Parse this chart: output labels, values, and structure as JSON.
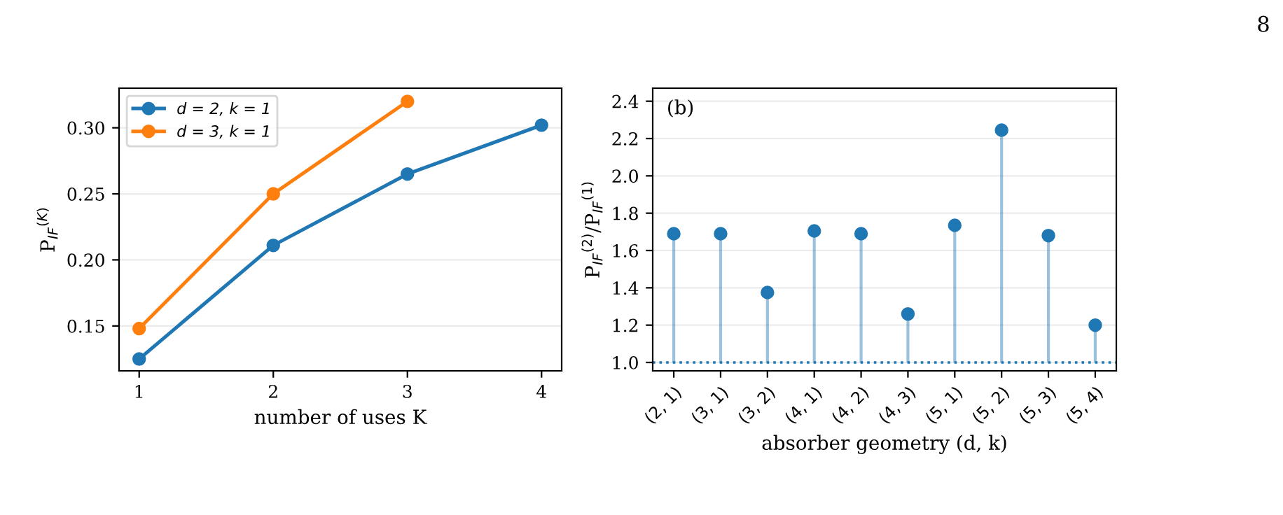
{
  "chart_data": [
    {
      "type": "line",
      "xlabel": "number of uses K",
      "ylabel": "P$_{IF}$$^{(K)}$",
      "x": [
        1,
        2,
        3,
        4
      ],
      "xlim": [
        0.85,
        4.15
      ],
      "xticks": [
        1,
        2,
        3,
        4
      ],
      "ylim": [
        0.116,
        0.33
      ],
      "yticks": [
        0.15,
        {
          "value": 0.2,
          "label": "0.20"
        },
        0.25,
        {
          "value": 0.3,
          "label": "0.30"
        }
      ],
      "grid": "y",
      "legend": "top left",
      "marker": "circle",
      "line_style": "solid",
      "series": [
        {
          "name": "d = 2, k = 1",
          "color": "#1f77b4",
          "values": [
            0.125,
            0.211,
            0.265,
            0.302
          ]
        },
        {
          "name": "d = 3, k = 1",
          "color": "#ff7f0e",
          "values": [
            0.148,
            0.25,
            0.32,
            null
          ]
        }
      ]
    },
    {
      "type": "lollipop",
      "xlabel": "absorber geometry (d, k)",
      "ylabel": "P$_{IF}$$^{(2)}$/P$_{IF}$$^{(1)}$",
      "annotations": [
        "(b)",
        "8"
      ],
      "categories": [
        "(2, 1)",
        "(3, 1)",
        "(3, 2)",
        "(4, 1)",
        "(4, 2)",
        "(4, 3)",
        "(5, 1)",
        "(5, 2)",
        "(5, 3)",
        "(5, 4)"
      ],
      "values": [
        1.69,
        1.69,
        1.375,
        1.705,
        1.69,
        1.26,
        1.735,
        2.245,
        1.68,
        1.2
      ],
      "color": "#1f77b4",
      "ylim": [
        0.955,
        2.47
      ],
      "yticks": [
        {
          "value": 1,
          "label": "1.0"
        },
        1.2,
        1.4,
        1.6,
        1.8,
        {
          "value": 2,
          "label": "2.0"
        },
        2.2,
        2.4
      ],
      "grid": "y",
      "marker": "circle",
      "ref_lines": [
        {
          "axis": "y",
          "value": 1.0,
          "label": null,
          "color": "#1f77b4",
          "line_style": "dotted"
        }
      ]
    }
  ]
}
